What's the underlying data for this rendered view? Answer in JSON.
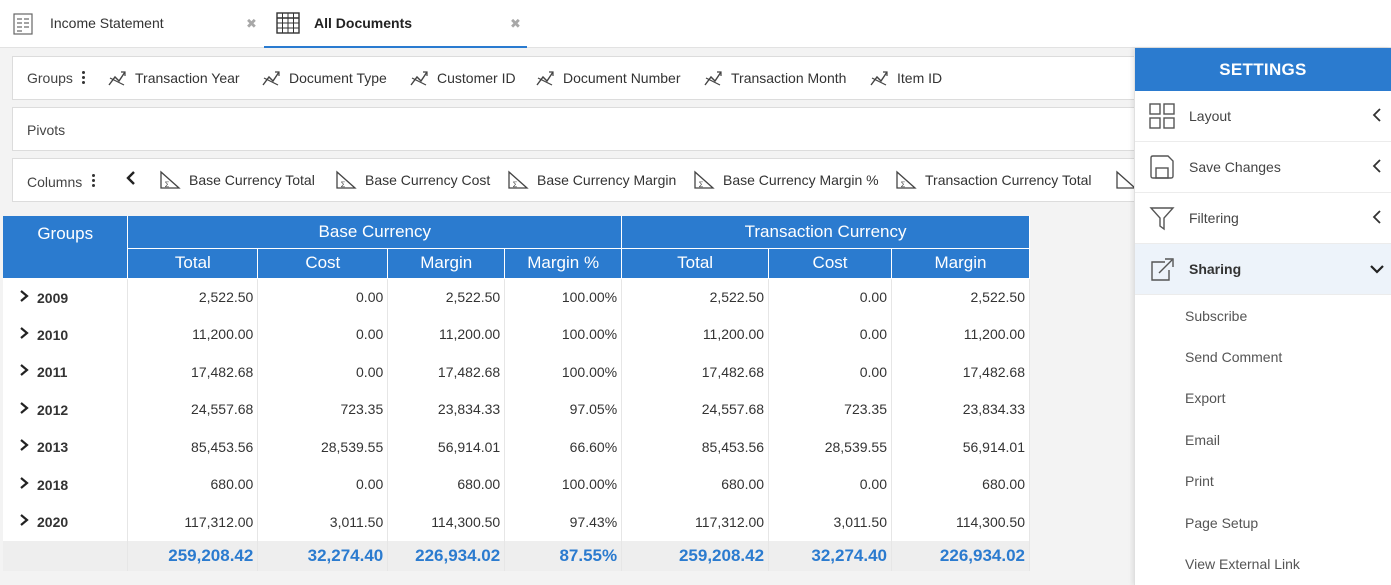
{
  "tabs": [
    {
      "label": "Income Statement",
      "icon": "report-icon",
      "active": false
    },
    {
      "label": "All Documents",
      "icon": "grid-icon",
      "active": true
    }
  ],
  "groups_row": {
    "title": "Groups",
    "chips": [
      "Transaction Year",
      "Document Type",
      "Customer ID",
      "Document Number",
      "Transaction Month",
      "Item ID"
    ]
  },
  "pivots_row": {
    "title": "Pivots"
  },
  "columns_row": {
    "title": "Columns",
    "chips": [
      "Base Currency Total",
      "Base Currency Cost",
      "Base Currency Margin",
      "Base Currency Margin %",
      "Transaction Currency Total"
    ]
  },
  "table": {
    "groups_header": "Groups",
    "band1": "Base Currency",
    "band2": "Transaction Currency",
    "columns": [
      "Total",
      "Cost",
      "Margin",
      "Margin %",
      "Total",
      "Cost",
      "Margin"
    ],
    "rows": [
      {
        "group": "2009",
        "cells": [
          "2,522.50",
          "0.00",
          "2,522.50",
          "100.00%",
          "2,522.50",
          "0.00",
          "2,522.50"
        ]
      },
      {
        "group": "2010",
        "cells": [
          "11,200.00",
          "0.00",
          "11,200.00",
          "100.00%",
          "11,200.00",
          "0.00",
          "11,200.00"
        ]
      },
      {
        "group": "2011",
        "cells": [
          "17,482.68",
          "0.00",
          "17,482.68",
          "100.00%",
          "17,482.68",
          "0.00",
          "17,482.68"
        ]
      },
      {
        "group": "2012",
        "cells": [
          "24,557.68",
          "723.35",
          "23,834.33",
          "97.05%",
          "24,557.68",
          "723.35",
          "23,834.33"
        ]
      },
      {
        "group": "2013",
        "cells": [
          "85,453.56",
          "28,539.55",
          "56,914.01",
          "66.60%",
          "85,453.56",
          "28,539.55",
          "56,914.01"
        ]
      },
      {
        "group": "2018",
        "cells": [
          "680.00",
          "0.00",
          "680.00",
          "100.00%",
          "680.00",
          "0.00",
          "680.00"
        ]
      },
      {
        "group": "2020",
        "cells": [
          "117,312.00",
          "3,011.50",
          "114,300.50",
          "97.43%",
          "117,312.00",
          "3,011.50",
          "114,300.50"
        ]
      }
    ],
    "totals": [
      "259,208.42",
      "32,274.40",
      "226,934.02",
      "87.55%",
      "259,208.42",
      "32,274.40",
      "226,934.02"
    ]
  },
  "settings": {
    "title": "SETTINGS",
    "items": [
      {
        "label": "Layout",
        "icon": "layout-icon",
        "expanded": false
      },
      {
        "label": "Save Changes",
        "icon": "save-icon",
        "expanded": false
      },
      {
        "label": "Filtering",
        "icon": "filter-icon",
        "expanded": false
      },
      {
        "label": "Sharing",
        "icon": "share-icon",
        "expanded": true
      }
    ],
    "sharing_options": [
      "Subscribe",
      "Send Comment",
      "Export",
      "Email",
      "Print",
      "Page Setup",
      "View External Link"
    ]
  },
  "colors": {
    "accent": "#2b7bcf",
    "total_text": "#2b7bcf",
    "header_text": "#ffffff"
  }
}
